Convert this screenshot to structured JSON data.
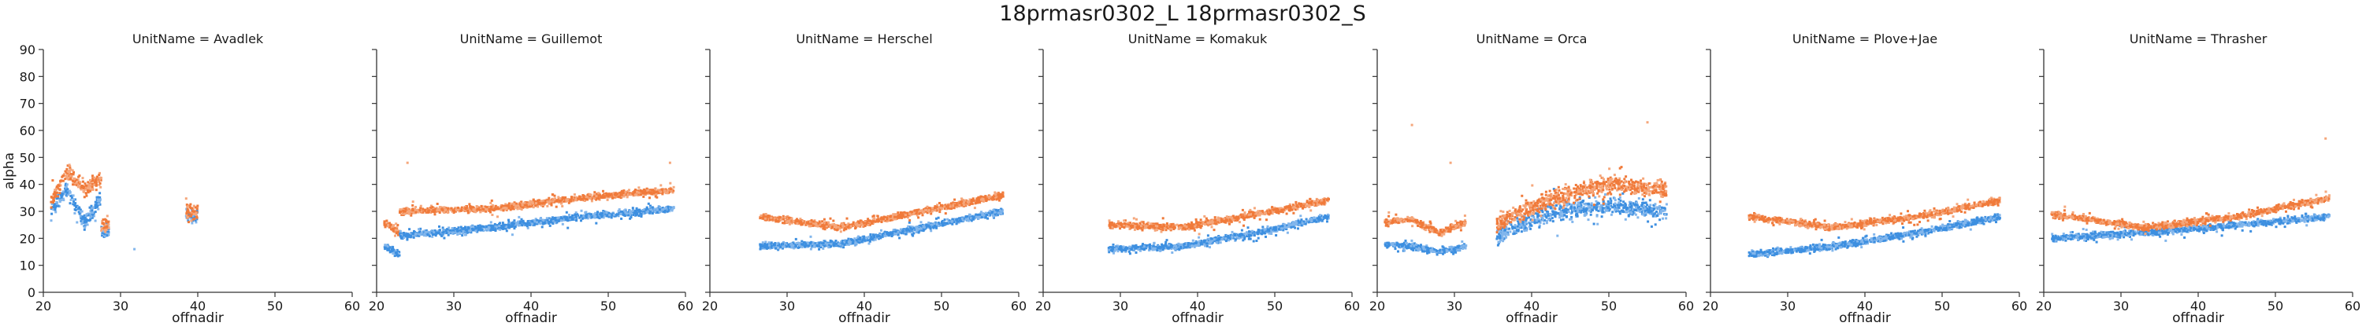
{
  "chart_data": {
    "type": "scatter",
    "title": "18prmasr0302_L 18prmasr0302_S",
    "xlabel": "offnadir",
    "ylabel": "alpha",
    "xlim": [
      20,
      60
    ],
    "ylim": [
      0,
      90
    ],
    "xticks": [
      20,
      30,
      40,
      50,
      60
    ],
    "yticks": [
      0,
      10,
      20,
      30,
      40,
      50,
      60,
      70,
      80,
      90
    ],
    "grid": false,
    "legend": "none",
    "series_colors": {
      "L": "#f07a3a",
      "S": "#3d8fe0"
    },
    "facets": [
      {
        "title": "UnitName = Avadlek",
        "clusters": [
          {
            "x": [
              21.0,
              27.5
            ],
            "L": [
              34,
              45,
              38,
              42
            ],
            "S": [
              30,
              38,
              26,
              35
            ]
          },
          {
            "x": [
              27.5,
              28.5
            ],
            "L": [
              24,
              25
            ],
            "S": [
              22,
              23
            ]
          },
          {
            "x": [
              38.5,
              40.0
            ],
            "L": [
              30,
              30
            ],
            "S": [
              28,
              29
            ]
          }
        ],
        "extra_points": [
          {
            "x": 31.8,
            "y": 16,
            "series": "S"
          }
        ]
      },
      {
        "title": "UnitName = Guillemot",
        "clusters": [
          {
            "x": [
              21.0,
              23.0
            ],
            "L": [
              26,
              22
            ],
            "S": [
              17,
              14
            ]
          },
          {
            "x": [
              23.0,
              58.5
            ],
            "L": [
              30,
              31,
              35,
              38
            ],
            "S": [
              21,
              24,
              28,
              31
            ]
          }
        ],
        "extra_points": [
          {
            "x": 24,
            "y": 48,
            "series": "L"
          },
          {
            "x": 58,
            "y": 48,
            "series": "L"
          }
        ]
      },
      {
        "title": "UnitName = Herschel",
        "clusters": [
          {
            "x": [
              26.5,
              58.0
            ],
            "L": [
              28,
              24,
              30,
              36
            ],
            "S": [
              17,
              18,
              24,
              30
            ]
          }
        ],
        "extra_points": []
      },
      {
        "title": "UnitName = Komakuk",
        "clusters": [
          {
            "x": [
              28.5,
              57.0
            ],
            "L": [
              25,
              24,
              29,
              34
            ],
            "S": [
              16,
              17,
              22,
              28
            ]
          }
        ],
        "extra_points": []
      },
      {
        "title": "UnitName = Orca",
        "clusters": [
          {
            "x": [
              21.0,
              31.5
            ],
            "L": [
              26,
              27,
              22,
              26
            ],
            "S": [
              18,
              17,
              15,
              17
            ]
          },
          {
            "x": [
              35.5,
              57.5
            ],
            "L": [
              25,
              35,
              40,
              38
            ],
            "S": [
              21,
              30,
              32,
              30
            ]
          }
        ],
        "extra_points": [
          {
            "x": 24.5,
            "y": 62,
            "series": "L"
          },
          {
            "x": 29.5,
            "y": 48,
            "series": "L"
          },
          {
            "x": 55,
            "y": 63,
            "series": "L"
          }
        ]
      },
      {
        "title": "UnitName = Plove+Jae",
        "clusters": [
          {
            "x": [
              25.0,
              57.5
            ],
            "L": [
              28,
              24,
              28,
              34
            ],
            "S": [
              14,
              17,
              22,
              28
            ]
          }
        ],
        "extra_points": []
      },
      {
        "title": "UnitName = Thrasher",
        "clusters": [
          {
            "x": [
              21.0,
              57.0
            ],
            "L": [
              29,
              24,
              28,
              35
            ],
            "S": [
              20,
              22,
              25,
              28
            ]
          }
        ],
        "extra_points": [
          {
            "x": 56.5,
            "y": 57,
            "series": "L"
          }
        ]
      }
    ]
  }
}
